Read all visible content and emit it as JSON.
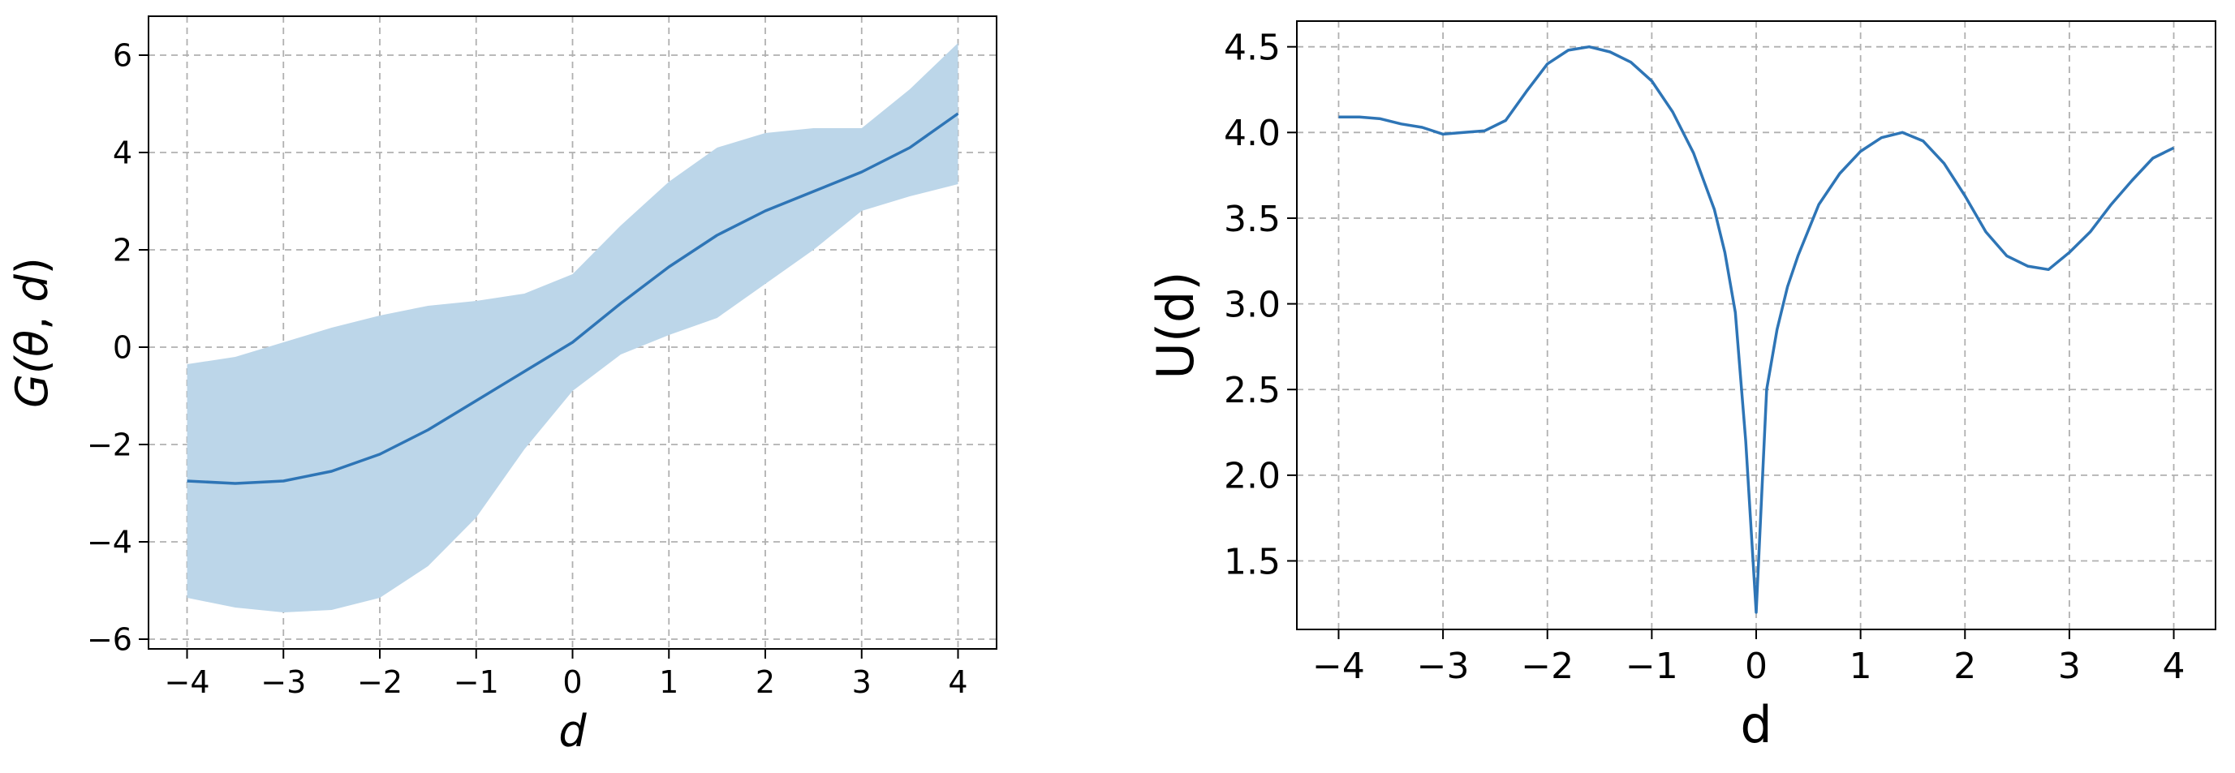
{
  "colors": {
    "line": "#2e75b6",
    "band": "#bcd6e9",
    "grid": "#b0b0b0",
    "axis": "#000000"
  },
  "chart_data": [
    {
      "type": "line",
      "xlabel": "d",
      "ylabel": "G(θ, d)",
      "ylabel_parts": {
        "a": "G(",
        "b": "θ",
        "c": ", ",
        "d": "d",
        "e": ")"
      },
      "xlim": [
        -4.4,
        4.4
      ],
      "ylim": [
        -6.2,
        6.8
      ],
      "xticks": [
        -4,
        -3,
        -2,
        -1,
        0,
        1,
        2,
        3,
        4
      ],
      "xtick_labels": [
        "−4",
        "−3",
        "−2",
        "−1",
        "0",
        "1",
        "2",
        "3",
        "4"
      ],
      "yticks": [
        -6,
        -4,
        -2,
        0,
        2,
        4,
        6
      ],
      "ytick_labels": [
        "−6",
        "−4",
        "−2",
        "0",
        "2",
        "4",
        "6"
      ],
      "grid": true,
      "x": [
        -4,
        -3.5,
        -3,
        -2.5,
        -2,
        -1.5,
        -1,
        -0.5,
        0,
        0.5,
        1,
        1.5,
        2,
        2.5,
        3,
        3.5,
        4
      ],
      "mean": [
        -2.75,
        -2.8,
        -2.75,
        -2.55,
        -2.2,
        -1.7,
        -1.1,
        -0.5,
        0.1,
        0.9,
        1.65,
        2.3,
        2.8,
        3.2,
        3.6,
        4.1,
        4.8
      ],
      "upper": [
        -0.35,
        -0.2,
        0.1,
        0.4,
        0.65,
        0.85,
        0.95,
        1.1,
        1.5,
        2.5,
        3.4,
        4.1,
        4.4,
        4.5,
        4.5,
        5.3,
        6.25
      ],
      "lower": [
        -5.15,
        -5.35,
        -5.45,
        -5.4,
        -5.15,
        -4.5,
        -3.5,
        -2.1,
        -0.9,
        -0.15,
        0.25,
        0.6,
        1.3,
        2.0,
        2.8,
        3.1,
        3.35
      ]
    },
    {
      "type": "line",
      "xlabel": "d",
      "ylabel": "U(d)",
      "xlim": [
        -4.4,
        4.4
      ],
      "ylim": [
        1.1,
        4.65
      ],
      "xticks": [
        -4,
        -3,
        -2,
        -1,
        0,
        1,
        2,
        3,
        4
      ],
      "xtick_labels": [
        "−4",
        "−3",
        "−2",
        "−1",
        "0",
        "1",
        "2",
        "3",
        "4"
      ],
      "yticks": [
        1.5,
        2.0,
        2.5,
        3.0,
        3.5,
        4.0,
        4.5
      ],
      "ytick_labels": [
        "1.5",
        "2.0",
        "2.5",
        "3.0",
        "3.5",
        "4.0",
        "4.5"
      ],
      "grid": true,
      "x": [
        -4,
        -3.8,
        -3.6,
        -3.4,
        -3.2,
        -3,
        -2.8,
        -2.6,
        -2.4,
        -2.2,
        -2.1,
        -2,
        -1.8,
        -1.6,
        -1.4,
        -1.2,
        -1,
        -0.8,
        -0.6,
        -0.4,
        -0.3,
        -0.2,
        -0.1,
        0,
        0.1,
        0.2,
        0.3,
        0.4,
        0.6,
        0.8,
        1.0,
        1.2,
        1.4,
        1.6,
        1.8,
        2.0,
        2.2,
        2.4,
        2.6,
        2.8,
        3.0,
        3.2,
        3.4,
        3.6,
        3.8,
        4.0
      ],
      "y": [
        4.09,
        4.09,
        4.08,
        4.05,
        4.03,
        3.99,
        4.0,
        4.01,
        4.07,
        4.24,
        4.32,
        4.4,
        4.48,
        4.5,
        4.47,
        4.41,
        4.3,
        4.12,
        3.88,
        3.55,
        3.3,
        2.95,
        2.2,
        1.2,
        2.5,
        2.85,
        3.1,
        3.28,
        3.58,
        3.76,
        3.89,
        3.97,
        4.0,
        3.95,
        3.82,
        3.63,
        3.42,
        3.28,
        3.22,
        3.2,
        3.3,
        3.42,
        3.58,
        3.72,
        3.85,
        3.91
      ]
    }
  ]
}
